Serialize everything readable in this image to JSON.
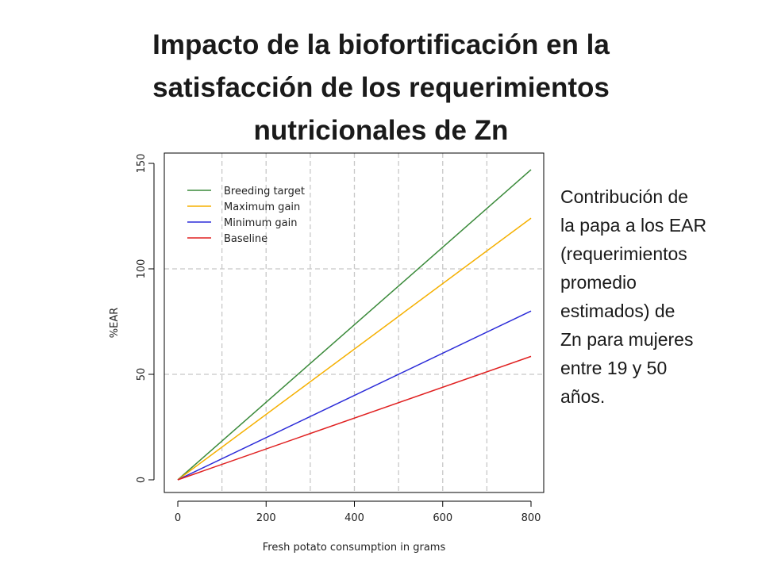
{
  "slide": {
    "title_lines": [
      "Impacto de la biofortificación en la",
      "satisfacción de los requerimientos",
      "nutricionales de Zn"
    ],
    "side_text_lines": [
      "Contribución de",
      "la papa a los EAR",
      "(requerimientos",
      "promedio",
      "estimados) de",
      "Zn para mujeres",
      "entre 19 y 50",
      "años."
    ]
  },
  "chart_data": {
    "type": "line",
    "xlabel": "Fresh potato consumption in grams",
    "ylabel": "%EAR",
    "xlim": [
      0,
      800
    ],
    "ylim": [
      0,
      150
    ],
    "x_ticks": [
      0,
      200,
      400,
      600,
      800
    ],
    "y_ticks": [
      0,
      50,
      100,
      150
    ],
    "grid": true,
    "legend_position": "top-left",
    "series": [
      {
        "name": "Breeding target",
        "color": "#3a8a3a",
        "x": [
          0,
          800
        ],
        "y": [
          0,
          147
        ]
      },
      {
        "name": "Maximum gain",
        "color": "#f5b000",
        "x": [
          0,
          800
        ],
        "y": [
          0,
          124
        ]
      },
      {
        "name": "Minimum gain",
        "color": "#2b2bd8",
        "x": [
          0,
          800
        ],
        "y": [
          0,
          80
        ]
      },
      {
        "name": "Baseline",
        "color": "#e02020",
        "x": [
          0,
          800
        ],
        "y": [
          0,
          58.5
        ]
      }
    ]
  }
}
